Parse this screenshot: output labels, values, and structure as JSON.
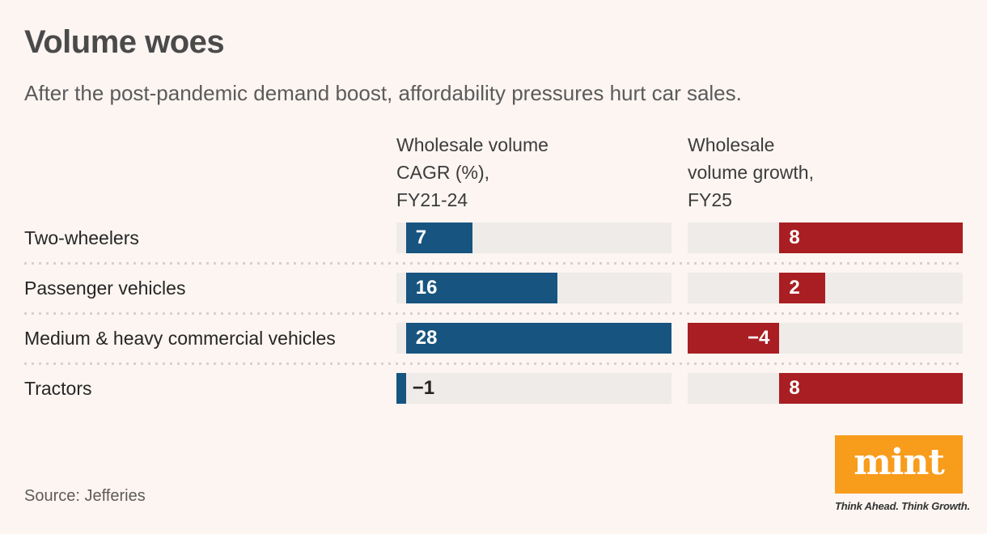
{
  "page": {
    "background": "#fcf5f2"
  },
  "header": {
    "title": "Volume woes",
    "subtitle": "After the post-pandemic demand boost, affordability pressures hurt car sales."
  },
  "chart_data": {
    "type": "bar",
    "orientation": "horizontal",
    "categories": [
      "Two-wheelers",
      "Passenger vehicles",
      "Medium & heavy commercial vehicles",
      "Tractors"
    ],
    "series": [
      {
        "name": "Wholesale volume CAGR (%), FY21-24",
        "header_lines": [
          "Wholesale volume",
          "CAGR (%),",
          "FY21-24"
        ],
        "values": [
          7,
          16,
          28,
          -1
        ],
        "color": "#17547f",
        "axis_min": -1,
        "axis_max": 28
      },
      {
        "name": "Wholesale volume growth, FY25",
        "header_lines": [
          "Wholesale",
          "volume growth,",
          "FY25"
        ],
        "values": [
          8,
          2,
          -4,
          8
        ],
        "color": "#a91e22",
        "axis_min": -4,
        "axis_max": 8
      }
    ],
    "track_color": "#efebe8",
    "grid": false,
    "legend_position": "column-headers",
    "value_labels": "on-bars"
  },
  "footer": {
    "source": "Source: Jefferies",
    "logo_text": "mint",
    "logo_color": "#f89c1c",
    "tagline": "Think Ahead. Think Growth."
  }
}
